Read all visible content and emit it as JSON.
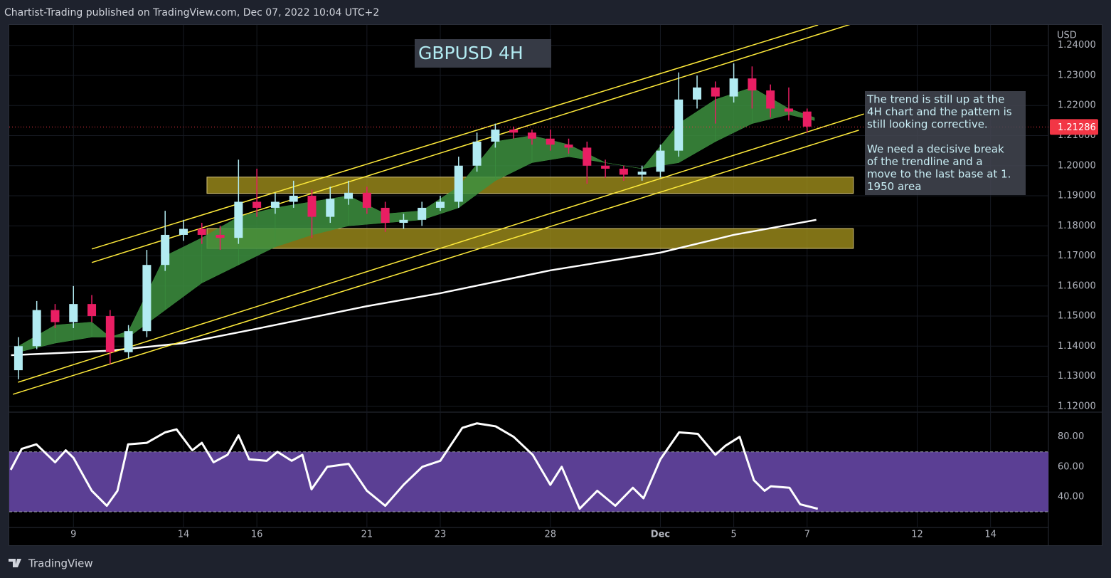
{
  "header": "Chartist-Trading published on TradingView.com, Dec 07, 2022 10:04 UTC+2",
  "footer_brand": "TradingView",
  "chart_data": [
    {
      "type": "candlestick",
      "title": "GBPUSD 4H",
      "y_axis_label": "USD",
      "annotation": {
        "paragraphs": [
          [
            "The trend is still up at the",
            "4H chart and the pattern is",
            "still looking corrective."
          ],
          [
            "We need a decisive break",
            "of the trendline and a",
            "move to the last base at 1.",
            "1950 area"
          ]
        ]
      },
      "x": [
        -1.5,
        -1.0,
        -0.5,
        0,
        0.5,
        1.0,
        1.5,
        2.0,
        2.5,
        3.0,
        3.5,
        4.0,
        4.5,
        5.0,
        5.5,
        6.0,
        6.5,
        7.0,
        7.5,
        8.0,
        8.5,
        9.0,
        9.5,
        10.0,
        10.5,
        11.0,
        11.5,
        12.0,
        12.5,
        13.0,
        13.5,
        14.0,
        14.5,
        15.0,
        15.5,
        16.0,
        16.5,
        17.0,
        17.5,
        18.0,
        18.5,
        19.0,
        19.5,
        20.0
      ],
      "open": [
        1.132,
        1.14,
        1.152,
        1.148,
        1.154,
        1.15,
        1.138,
        1.145,
        1.167,
        1.177,
        1.179,
        1.177,
        1.176,
        1.188,
        1.186,
        1.188,
        1.19,
        1.183,
        1.189,
        1.191,
        1.186,
        1.181,
        1.182,
        1.186,
        1.188,
        1.2,
        1.208,
        1.212,
        1.211,
        1.209,
        1.207,
        1.206,
        1.2,
        1.199,
        1.197,
        1.198,
        1.205,
        1.222,
        1.226,
        1.223,
        1.229,
        1.225,
        1.219,
        1.218
      ],
      "high": [
        1.143,
        1.155,
        1.154,
        1.16,
        1.157,
        1.152,
        1.147,
        1.172,
        1.185,
        1.182,
        1.181,
        1.18,
        1.202,
        1.199,
        1.191,
        1.195,
        1.192,
        1.193,
        1.195,
        1.193,
        1.188,
        1.184,
        1.188,
        1.19,
        1.203,
        1.211,
        1.214,
        1.213,
        1.212,
        1.212,
        1.209,
        1.208,
        1.202,
        1.2,
        1.2,
        1.207,
        1.231,
        1.23,
        1.228,
        1.234,
        1.233,
        1.227,
        1.226,
        1.219
      ],
      "low": [
        1.129,
        1.139,
        1.146,
        1.146,
        1.148,
        1.134,
        1.136,
        1.143,
        1.165,
        1.175,
        1.174,
        1.172,
        1.174,
        1.183,
        1.184,
        1.186,
        1.176,
        1.181,
        1.187,
        1.184,
        1.178,
        1.179,
        1.18,
        1.185,
        1.186,
        1.198,
        1.206,
        1.209,
        1.207,
        1.205,
        1.204,
        1.194,
        1.196,
        1.195,
        1.195,
        1.196,
        1.203,
        1.219,
        1.214,
        1.221,
        1.219,
        1.216,
        1.215,
        1.211
      ],
      "close": [
        1.14,
        1.152,
        1.148,
        1.154,
        1.15,
        1.138,
        1.145,
        1.167,
        1.177,
        1.179,
        1.177,
        1.176,
        1.188,
        1.186,
        1.188,
        1.19,
        1.183,
        1.189,
        1.191,
        1.186,
        1.181,
        1.182,
        1.186,
        1.188,
        1.2,
        1.208,
        1.212,
        1.211,
        1.209,
        1.207,
        1.206,
        1.2,
        1.199,
        1.197,
        1.198,
        1.205,
        1.222,
        1.226,
        1.223,
        1.229,
        1.225,
        1.219,
        1.218,
        1.213
      ],
      "up_color": "#b2ebf2",
      "down_color": "#e91e63",
      "cloud": {
        "x": [
          -1.5,
          -0.5,
          0.5,
          1.0,
          1.5,
          2.5,
          3.5,
          4.5,
          5.5,
          6.5,
          7.5,
          8.5,
          9.5,
          10.5,
          11.5,
          12.5,
          13.5,
          14.5,
          15.5,
          16.5,
          17.5,
          18.5,
          19.5,
          20.2
        ],
        "upper": [
          1.14,
          1.147,
          1.148,
          1.143,
          1.145,
          1.17,
          1.176,
          1.183,
          1.186,
          1.188,
          1.19,
          1.184,
          1.185,
          1.193,
          1.208,
          1.21,
          1.207,
          1.201,
          1.199,
          1.214,
          1.222,
          1.226,
          1.219,
          1.216
        ],
        "lower": [
          1.138,
          1.141,
          1.143,
          1.143,
          1.143,
          1.152,
          1.161,
          1.167,
          1.173,
          1.177,
          1.18,
          1.181,
          1.182,
          1.186,
          1.195,
          1.201,
          1.203,
          1.201,
          1.199,
          1.201,
          1.208,
          1.214,
          1.217,
          1.215
        ],
        "color": "#3d9140"
      },
      "slow_ma": {
        "x": [
          -1.7,
          1.0,
          3.0,
          5.0,
          8.0,
          10.0,
          13.0,
          16.0,
          18.0,
          20.25
        ],
        "values": [
          1.137,
          1.1385,
          1.141,
          1.1458,
          1.1533,
          1.1576,
          1.1652,
          1.1711,
          1.177,
          1.182
        ],
        "color": "#ffffff"
      },
      "zones": [
        {
          "x": [
            3.64,
            21.26
          ],
          "y": [
            1.1908,
            1.1962
          ]
        },
        {
          "x": [
            3.64,
            21.26
          ],
          "y": [
            1.1725,
            1.1791
          ]
        }
      ],
      "zone_color": "#a08e1c",
      "channel_lines": [
        {
          "x": [
            0.5,
            20.3
          ],
          "y": [
            1.1723,
            1.2468
          ]
        },
        {
          "x": [
            0.5,
            21.26
          ],
          "y": [
            1.1678,
            1.2473
          ]
        },
        {
          "x": [
            -1.51,
            21.55
          ],
          "y": [
            1.128,
            1.2172
          ]
        },
        {
          "x": [
            -1.65,
            21.41
          ],
          "y": [
            1.124,
            1.2118
          ]
        }
      ],
      "channel_color": "#ffeb3b",
      "last_price": 1.21286,
      "last_price_color": "#f23645",
      "xlim": [
        -1.75,
        26.5
      ],
      "ylim": [
        1.1183,
        1.2468
      ],
      "yticks": [
        {
          "value": 1.12,
          "label": "1.12000"
        },
        {
          "value": 1.13,
          "label": "1.13000"
        },
        {
          "value": 1.14,
          "label": "1.14000"
        },
        {
          "value": 1.15,
          "label": "1.15000"
        },
        {
          "value": 1.16,
          "label": "1.16000"
        },
        {
          "value": 1.17,
          "label": "1.17000"
        },
        {
          "value": 1.18,
          "label": "1.18000"
        },
        {
          "value": 1.19,
          "label": "1.19000"
        },
        {
          "value": 1.2,
          "label": "1.20000"
        },
        {
          "value": 1.21,
          "label": "1.21000"
        },
        {
          "value": 1.22,
          "label": "1.22000"
        },
        {
          "value": 1.23,
          "label": "1.23000"
        },
        {
          "value": 1.24,
          "label": "1.24000"
        }
      ],
      "xticks": [
        {
          "value": 0,
          "label": "9"
        },
        {
          "value": 3,
          "label": "14"
        },
        {
          "value": 5,
          "label": "16"
        },
        {
          "value": 8,
          "label": "21"
        },
        {
          "value": 10,
          "label": "23"
        },
        {
          "value": 13,
          "label": "28"
        },
        {
          "value": 16,
          "label": "Dec"
        },
        {
          "value": 18,
          "label": "5"
        },
        {
          "value": 20,
          "label": "7"
        },
        {
          "value": 23,
          "label": "12"
        },
        {
          "value": 25,
          "label": "14"
        }
      ],
      "grid": true
    },
    {
      "type": "line",
      "x": [
        -1.71,
        -1.41,
        -1.01,
        -0.5,
        -0.21,
        0,
        0.5,
        0.91,
        1.2,
        1.49,
        2.0,
        2.5,
        2.81,
        3.24,
        3.5,
        3.82,
        4.2,
        4.5,
        4.79,
        5.27,
        5.56,
        5.95,
        6.24,
        6.49,
        6.92,
        7.5,
        8.0,
        8.5,
        9.0,
        9.51,
        10.0,
        10.6,
        11.0,
        11.51,
        12.0,
        12.52,
        13.0,
        13.31,
        13.8,
        14.28,
        14.77,
        15.25,
        15.54,
        16.0,
        16.51,
        17.02,
        17.5,
        17.77,
        18.16,
        18.55,
        18.84,
        19.01,
        19.52,
        19.81,
        20.29
      ],
      "values": [
        58,
        72,
        75,
        63,
        71,
        66,
        44,
        34,
        44,
        75,
        76,
        83,
        85,
        71,
        76,
        63,
        68,
        81,
        65,
        64,
        70,
        64,
        68,
        45,
        60,
        62,
        44,
        34,
        48,
        60,
        64,
        86,
        89,
        87,
        80,
        68,
        48,
        60,
        32,
        44,
        34,
        46,
        39,
        65,
        83,
        82,
        68,
        74,
        80,
        51,
        44,
        47,
        46,
        35,
        32
      ],
      "color": "#ffffff",
      "band": [
        30,
        70
      ],
      "band_color": "#5b3f94",
      "xlim": [
        -1.75,
        26.5
      ],
      "ylim": [
        20,
        96
      ],
      "yticks": [
        {
          "value": 40,
          "label": "40.00"
        },
        {
          "value": 60,
          "label": "60.00"
        },
        {
          "value": 80,
          "label": "80.00"
        }
      ]
    }
  ]
}
